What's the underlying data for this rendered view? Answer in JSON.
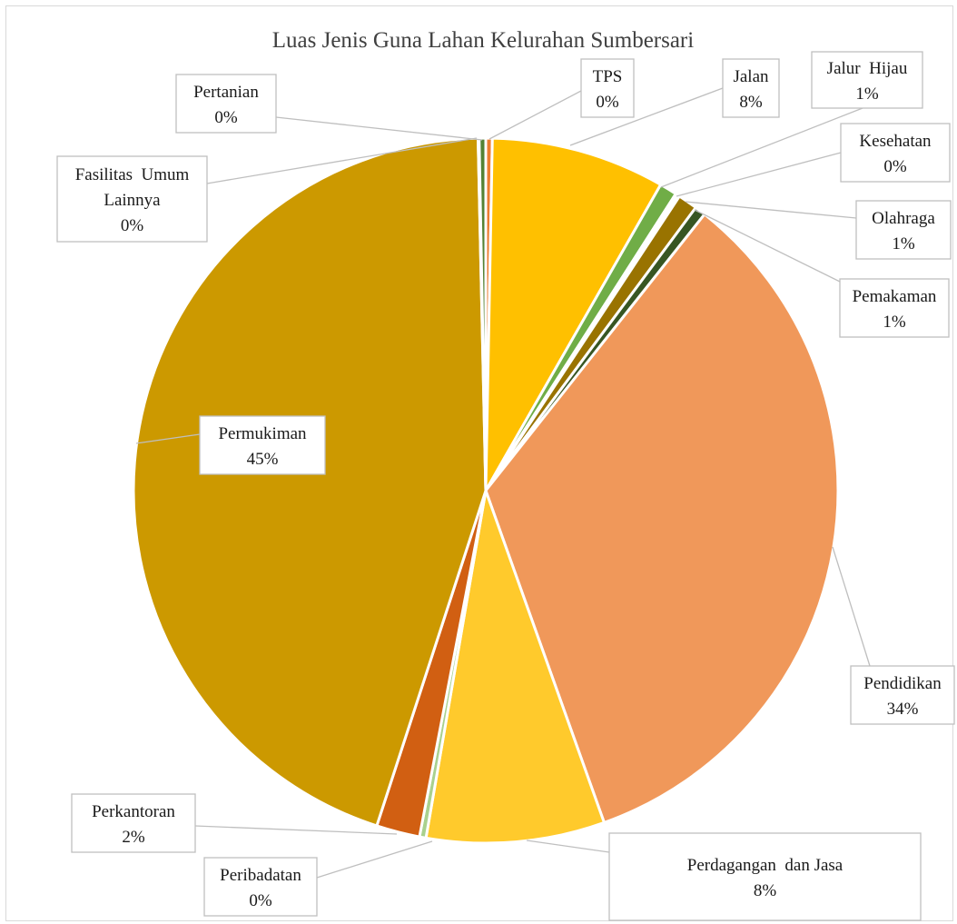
{
  "chart_data": {
    "type": "pie",
    "title": "Luas Jenis Guna Lahan Kelurahan Sumbersari",
    "slices": [
      {
        "name": "TPS",
        "label_lines": [
          "TPS"
        ],
        "value": 0.3,
        "pct_label": "0%",
        "color": "#ed7d31"
      },
      {
        "name": "Jalan",
        "label_lines": [
          "Jalan"
        ],
        "value": 8,
        "pct_label": "8%",
        "color": "#ffc000"
      },
      {
        "name": "Jalur Hijau",
        "label_lines": [
          "Jalur  Hijau"
        ],
        "value": 0.8,
        "pct_label": "1%",
        "color": "#70ad47"
      },
      {
        "name": "Kesehatan",
        "label_lines": [
          "Kesehatan"
        ],
        "value": 0.2,
        "pct_label": "0%",
        "color": "#ffffff"
      },
      {
        "name": "Olahraga",
        "label_lines": [
          "Olahraga"
        ],
        "value": 0.9,
        "pct_label": "1%",
        "color": "#997300"
      },
      {
        "name": "Pemakaman",
        "label_lines": [
          "Pemakaman"
        ],
        "value": 0.5,
        "pct_label": "1%",
        "color": "#375623"
      },
      {
        "name": "Pendidikan",
        "label_lines": [
          "Pendidikan"
        ],
        "value": 34,
        "pct_label": "34%",
        "color": "#f0985a"
      },
      {
        "name": "Perdagangan dan Jasa",
        "label_lines": [
          "Perdagangan  dan Jasa"
        ],
        "value": 8.2,
        "pct_label": "8%",
        "color": "#ffca2c"
      },
      {
        "name": "Peribadatan",
        "label_lines": [
          "Peribadatan"
        ],
        "value": 0.3,
        "pct_label": "0%",
        "color": "#a9d18e"
      },
      {
        "name": "Perkantoran",
        "label_lines": [
          "Perkantoran"
        ],
        "value": 2,
        "pct_label": "2%",
        "color": "#d15f12"
      },
      {
        "name": "Permukiman",
        "label_lines": [
          "Permukiman"
        ],
        "value": 44.8,
        "pct_label": "45%",
        "color": "#cc9900"
      },
      {
        "name": "Fasilitas Umum Lainnya",
        "label_lines": [
          "Fasilitas  Umum",
          "Lainnya"
        ],
        "value": 0.05,
        "pct_label": "0%",
        "color": "#ffe699"
      },
      {
        "name": "Pertanian",
        "label_lines": [
          "Pertanian"
        ],
        "value": 0.3,
        "pct_label": "0%",
        "color": "#548235"
      }
    ],
    "start_angle_deg": 0,
    "direction": "clockwise",
    "legend": "none",
    "data_labels": "category name and percentage, outside with leader lines"
  }
}
